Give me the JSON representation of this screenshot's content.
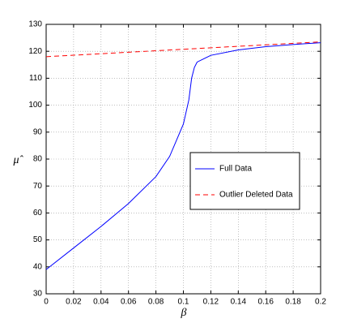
{
  "chart_data": {
    "type": "line",
    "x_label": "β",
    "y_label": "μ̂",
    "x": [
      0,
      0.02,
      0.04,
      0.06,
      0.08,
      0.09,
      0.1,
      0.104,
      0.106,
      0.108,
      0.11,
      0.12,
      0.14,
      0.16,
      0.18,
      0.2
    ],
    "series": [
      {
        "name": "Full Data",
        "color": "#0000ff",
        "linestyle": "solid",
        "values": [
          39,
          47,
          55,
          63.5,
          73.5,
          81,
          93,
          102,
          110,
          114,
          116,
          118.5,
          120.5,
          121.7,
          122.5,
          123.2
        ]
      },
      {
        "name": "Outlier Deleted Data",
        "color": "#ff0000",
        "linestyle": "dashed",
        "values": [
          118,
          118.55,
          119.1,
          119.65,
          120.2,
          120.48,
          120.75,
          120.86,
          120.92,
          120.97,
          121.03,
          121.3,
          121.85,
          122.4,
          122.95,
          123.5
        ]
      }
    ],
    "xlim": [
      0,
      0.2
    ],
    "xticks": [
      0,
      0.02,
      0.04,
      0.06,
      0.08,
      0.1,
      0.12,
      0.14,
      0.16,
      0.18,
      0.2
    ],
    "ylim": [
      30,
      130
    ],
    "yticks": [
      30,
      40,
      50,
      60,
      70,
      80,
      90,
      100,
      110,
      120,
      130
    ],
    "grid": true,
    "legend": "center-right"
  }
}
